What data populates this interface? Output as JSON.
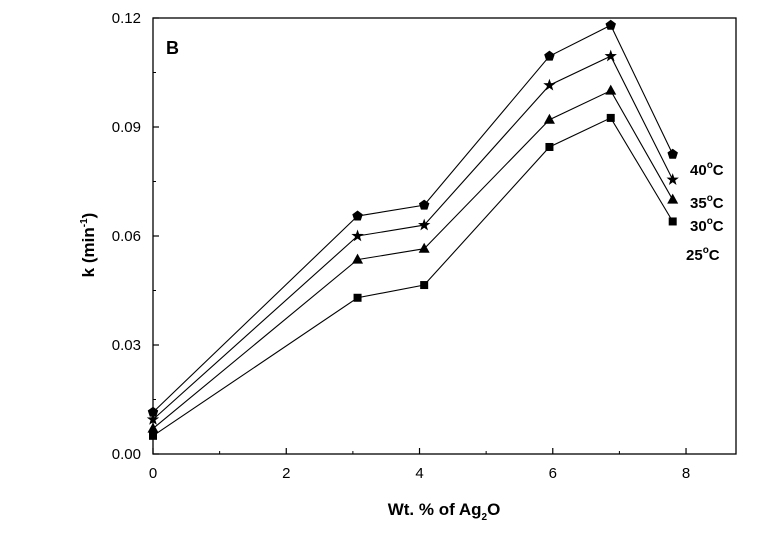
{
  "chart_data": {
    "type": "line",
    "panel_label": "B",
    "xlabel_parts": [
      "Wt. % of Ag",
      "2",
      "O"
    ],
    "ylabel_parts": [
      "k (min",
      "-1",
      ")"
    ],
    "xlim": [
      0,
      8.75
    ],
    "ylim": [
      0,
      0.12
    ],
    "xticks": [
      0,
      2,
      4,
      6,
      8
    ],
    "xtick_labels": [
      "0",
      "2",
      "4",
      "6",
      "8"
    ],
    "yticks": [
      0,
      0.03,
      0.06,
      0.09,
      0.12
    ],
    "ytick_labels": [
      "0.00",
      "0.03",
      "0.06",
      "0.09",
      "0.12"
    ],
    "grid": false,
    "x": [
      0,
      3.07,
      4.07,
      5.95,
      6.87,
      7.8
    ],
    "series": [
      {
        "name": "40°C",
        "label_parts": [
          "40",
          "o",
          "C"
        ],
        "marker": "pentagon",
        "values": [
          0.0115,
          0.0655,
          0.0685,
          0.1095,
          0.118,
          0.0825
        ]
      },
      {
        "name": "35°C",
        "label_parts": [
          "35",
          "o",
          "C"
        ],
        "marker": "star",
        "values": [
          0.0095,
          0.06,
          0.063,
          0.1015,
          0.1095,
          0.0755
        ]
      },
      {
        "name": "30°C",
        "label_parts": [
          "30",
          "o",
          "C"
        ],
        "marker": "triangle",
        "values": [
          0.007,
          0.0535,
          0.0565,
          0.092,
          0.1,
          0.07
        ]
      },
      {
        "name": "25°C",
        "label_parts": [
          "25",
          "o",
          "C"
        ],
        "marker": "square",
        "values": [
          0.005,
          0.043,
          0.0465,
          0.0845,
          0.0925,
          0.064
        ]
      }
    ]
  }
}
